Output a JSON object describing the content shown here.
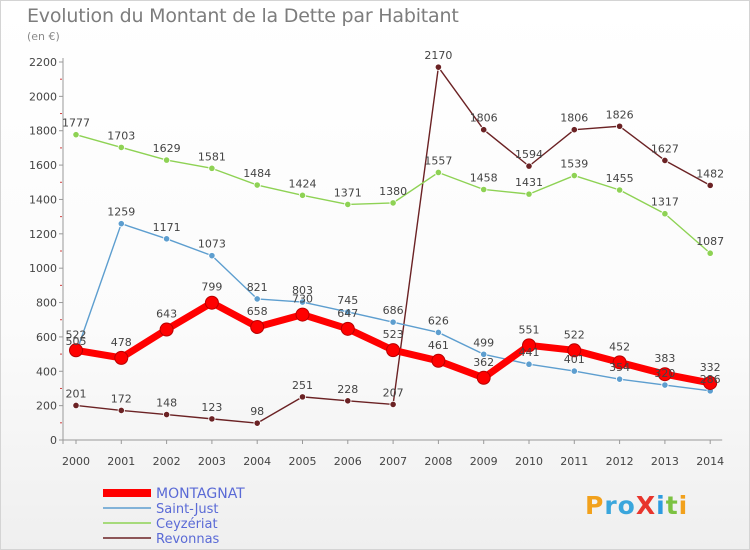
{
  "page": {
    "title": "Evolution du Montant de la Dette par Habitant",
    "subtitle": "(en €)",
    "logo": "ProXiti"
  },
  "chart_data": {
    "type": "line",
    "title": "Evolution du Montant de la Dette par Habitant",
    "subtitle": "(en €)",
    "xlabel": "",
    "ylabel": "",
    "x": [
      "2000",
      "2001",
      "2002",
      "2003",
      "2004",
      "2005",
      "2006",
      "2007",
      "2008",
      "2009",
      "2010",
      "2011",
      "2012",
      "2013",
      "2014"
    ],
    "ylim": [
      0,
      2200
    ],
    "yticks": [
      0,
      200,
      400,
      600,
      800,
      1000,
      1200,
      1400,
      1600,
      1800,
      2000,
      2200
    ],
    "grid": false,
    "legend_position": "bottom-left",
    "series": [
      {
        "name": "Revonnas",
        "color": "#6b2224",
        "values": [
          201,
          172,
          148,
          123,
          98,
          251,
          228,
          207,
          2170,
          1806,
          1594,
          1806,
          1826,
          1627,
          1482
        ]
      },
      {
        "name": "Ceyzériat",
        "color": "#8ed254",
        "values": [
          1777,
          1703,
          1629,
          1581,
          1484,
          1424,
          1371,
          1380,
          1557,
          1458,
          1431,
          1539,
          1455,
          1317,
          1087
        ]
      },
      {
        "name": "Saint-Just",
        "color": "#5d9ecf",
        "values": [
          505,
          1259,
          1171,
          1073,
          821,
          803,
          745,
          686,
          626,
          499,
          441,
          401,
          354,
          320,
          286
        ]
      },
      {
        "name": "MONTAGNAT",
        "color": "#ff0000",
        "values": [
          522,
          478,
          643,
          799,
          658,
          730,
          647,
          523,
          461,
          362,
          551,
          522,
          452,
          383,
          332
        ]
      }
    ],
    "legend_order": [
      "MONTAGNAT",
      "Saint-Just",
      "Ceyzériat",
      "Revonnas"
    ],
    "colors": {
      "axis": "#999999",
      "tick_label": "#444444",
      "value_label": "#444444",
      "legend_text": "#5a6ad6"
    }
  }
}
